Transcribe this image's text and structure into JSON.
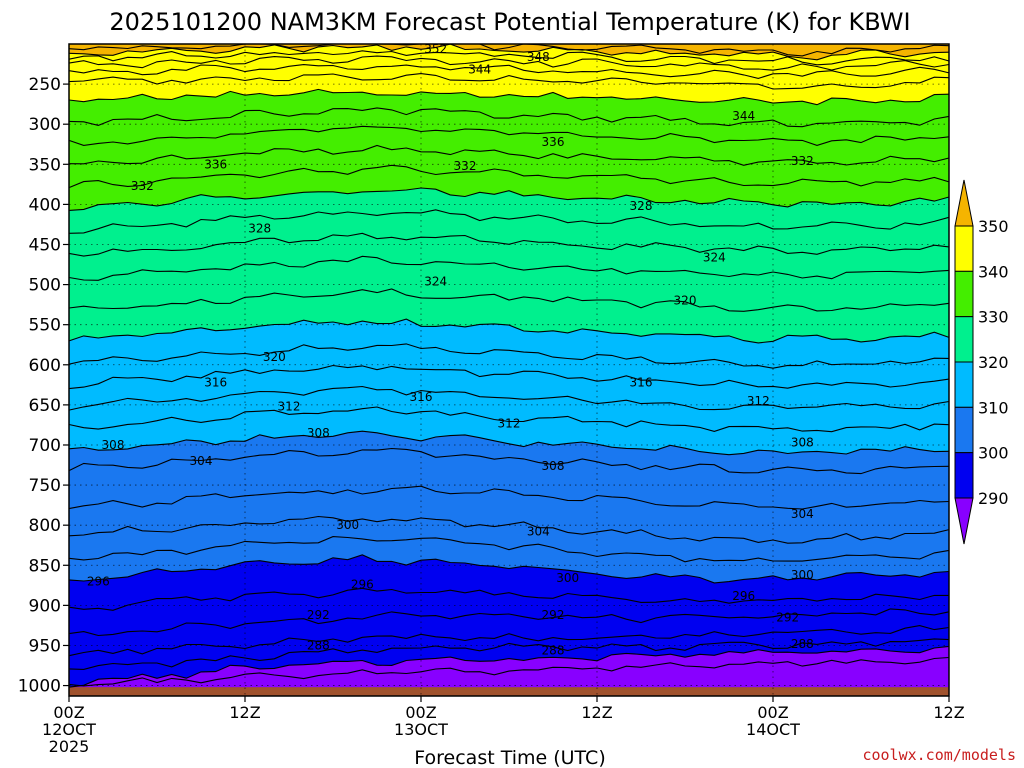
{
  "chart_data": {
    "type": "contour",
    "title": "2025101200 NAM3KM Forecast Potential Temperature (K) for KBWI",
    "xlabel": "Forecast Time (UTC)",
    "ylabel": "",
    "x_ticks": [
      {
        "hour": 0,
        "label": "00Z",
        "date": "12OCT",
        "year": "2025"
      },
      {
        "hour": 12,
        "label": "12Z",
        "date": "",
        "year": ""
      },
      {
        "hour": 24,
        "label": "00Z",
        "date": "13OCT",
        "year": ""
      },
      {
        "hour": 36,
        "label": "12Z",
        "date": "",
        "year": ""
      },
      {
        "hour": 48,
        "label": "00Z",
        "date": "14OCT",
        "year": ""
      },
      {
        "hour": 60,
        "label": "12Z",
        "date": "",
        "year": ""
      }
    ],
    "xlim": [
      0,
      60
    ],
    "y_ticks": [
      250,
      300,
      350,
      400,
      450,
      500,
      550,
      600,
      650,
      700,
      750,
      800,
      850,
      900,
      950,
      1000
    ],
    "ylim": [
      1013,
      200
    ],
    "grid": true,
    "colorbar": {
      "labels": [
        350,
        340,
        330,
        320,
        310,
        300,
        290
      ],
      "colors": [
        "#f5b400",
        "#ffff00",
        "#44ee00",
        "#00f08e",
        "#00bbff",
        "#1a78f0",
        "#0000f0",
        "#8800ff"
      ],
      "extend": "both"
    },
    "contour_levels": [
      {
        "value": 288,
        "p": [
          1002,
          996,
          990,
          986,
          984,
          982,
          981,
          978,
          976,
          974,
          972,
          970,
          968
        ]
      },
      {
        "value": 290,
        "p": [
          997,
          990,
          982,
          975,
          971,
          968,
          967,
          965,
          963,
          961,
          959,
          957,
          956
        ]
      },
      {
        "value": 292,
        "p": [
          980,
          974,
          968,
          960,
          955,
          952,
          952,
          953,
          952,
          950,
          948,
          946,
          944
        ]
      },
      {
        "value": 294,
        "p": [
          962,
          956,
          950,
          945,
          941,
          940,
          940,
          940,
          938,
          936,
          934,
          932,
          930
        ]
      },
      {
        "value": 296,
        "p": [
          938,
          932,
          925,
          920,
          915,
          912,
          912,
          915,
          916,
          914,
          912,
          910,
          908
        ]
      },
      {
        "value": 298,
        "p": [
          905,
          898,
          890,
          885,
          884,
          884,
          886,
          890,
          893,
          895,
          893,
          890,
          888
        ]
      },
      {
        "value": 300,
        "p": [
          868,
          860,
          852,
          846,
          842,
          846,
          852,
          858,
          864,
          868,
          866,
          862,
          858
        ]
      },
      {
        "value": 302,
        "p": [
          842,
          836,
          828,
          822,
          818,
          820,
          826,
          832,
          838,
          844,
          844,
          840,
          836
        ]
      },
      {
        "value": 304,
        "p": [
          812,
          806,
          800,
          795,
          792,
          796,
          800,
          806,
          812,
          818,
          818,
          814,
          810
        ]
      },
      {
        "value": 306,
        "p": [
          778,
          772,
          766,
          760,
          756,
          756,
          760,
          766,
          772,
          776,
          778,
          774,
          770
        ]
      },
      {
        "value": 308,
        "p": [
          730,
          724,
          718,
          712,
          708,
          712,
          718,
          722,
          726,
          730,
          732,
          730,
          726
        ]
      },
      {
        "value": 310,
        "p": [
          705,
          700,
          695,
          690,
          686,
          690,
          696,
          700,
          704,
          708,
          710,
          708,
          705
        ]
      },
      {
        "value": 312,
        "p": [
          678,
          672,
          666,
          660,
          656,
          660,
          666,
          670,
          674,
          678,
          680,
          678,
          674
        ]
      },
      {
        "value": 314,
        "p": [
          652,
          646,
          640,
          634,
          630,
          634,
          640,
          644,
          648,
          652,
          654,
          652,
          648
        ]
      },
      {
        "value": 316,
        "p": [
          625,
          618,
          612,
          606,
          602,
          606,
          612,
          616,
          620,
          624,
          626,
          624,
          620
        ]
      },
      {
        "value": 318,
        "p": [
          598,
          592,
          586,
          580,
          576,
          580,
          586,
          590,
          594,
          598,
          600,
          598,
          594
        ]
      },
      {
        "value": 320,
        "p": [
          568,
          562,
          556,
          550,
          546,
          550,
          554,
          558,
          562,
          566,
          568,
          566,
          562
        ]
      },
      {
        "value": 322,
        "p": [
          532,
          526,
          520,
          514,
          510,
          512,
          516,
          520,
          524,
          528,
          530,
          528,
          524
        ]
      },
      {
        "value": 324,
        "p": [
          492,
          486,
          480,
          474,
          470,
          472,
          476,
          480,
          482,
          486,
          488,
          486,
          482
        ]
      },
      {
        "value": 326,
        "p": [
          462,
          456,
          450,
          444,
          440,
          442,
          446,
          450,
          452,
          456,
          458,
          456,
          452
        ]
      },
      {
        "value": 328,
        "p": [
          432,
          426,
          420,
          414,
          410,
          412,
          416,
          420,
          422,
          426,
          428,
          426,
          422
        ]
      },
      {
        "value": 330,
        "p": [
          405,
          398,
          392,
          386,
          382,
          384,
          388,
          392,
          394,
          398,
          400,
          398,
          394
        ]
      },
      {
        "value": 332,
        "p": [
          378,
          372,
          366,
          360,
          356,
          358,
          362,
          366,
          368,
          372,
          374,
          372,
          368
        ]
      },
      {
        "value": 334,
        "p": [
          352,
          346,
          340,
          334,
          330,
          332,
          336,
          340,
          342,
          346,
          348,
          346,
          342
        ]
      },
      {
        "value": 336,
        "p": [
          325,
          320,
          314,
          308,
          304,
          306,
          310,
          314,
          316,
          320,
          322,
          320,
          316
        ]
      },
      {
        "value": 338,
        "p": [
          298,
          294,
          290,
          286,
          282,
          284,
          288,
          292,
          294,
          298,
          300,
          298,
          294
        ]
      },
      {
        "value": 340,
        "p": [
          268,
          266,
          264,
          262,
          260,
          262,
          264,
          266,
          268,
          270,
          272,
          270,
          266
        ]
      },
      {
        "value": 342,
        "p": [
          248,
          246,
          244,
          242,
          240,
          242,
          244,
          246,
          248,
          250,
          252,
          250,
          246
        ]
      },
      {
        "value": 344,
        "p": [
          235,
          233,
          231,
          229,
          227,
          229,
          231,
          233,
          235,
          237,
          239,
          237,
          233
        ]
      },
      {
        "value": 346,
        "p": [
          226,
          224,
          222,
          220,
          218,
          220,
          222,
          224,
          226,
          228,
          230,
          228,
          224
        ]
      },
      {
        "value": 348,
        "p": [
          218,
          216,
          214,
          212,
          210,
          212,
          214,
          216,
          218,
          220,
          222,
          220,
          216
        ]
      },
      {
        "value": 350,
        "p": [
          211,
          209,
          207,
          205,
          203,
          205,
          207,
          209,
          211,
          213,
          215,
          213,
          209
        ]
      },
      {
        "value": 352,
        "p": [
          206,
          204,
          202,
          200,
          198,
          200,
          202,
          204,
          206,
          208,
          210,
          208,
          204
        ]
      }
    ],
    "contour_labels": [
      {
        "value": "352",
        "hour": 25,
        "p": 206
      },
      {
        "value": "348",
        "hour": 32,
        "p": 216
      },
      {
        "value": "344",
        "hour": 28,
        "p": 232
      },
      {
        "value": "344",
        "hour": 46,
        "p": 290
      },
      {
        "value": "336",
        "hour": 33,
        "p": 322
      },
      {
        "value": "336",
        "hour": 10,
        "p": 350
      },
      {
        "value": "332",
        "hour": 5,
        "p": 377
      },
      {
        "value": "332",
        "hour": 27,
        "p": 352
      },
      {
        "value": "332",
        "hour": 50,
        "p": 346
      },
      {
        "value": "328",
        "hour": 39,
        "p": 402
      },
      {
        "value": "328",
        "hour": 13,
        "p": 430
      },
      {
        "value": "324",
        "hour": 44,
        "p": 466
      },
      {
        "value": "324",
        "hour": 25,
        "p": 496
      },
      {
        "value": "320",
        "hour": 42,
        "p": 520
      },
      {
        "value": "320",
        "hour": 14,
        "p": 590
      },
      {
        "value": "316",
        "hour": 10,
        "p": 622
      },
      {
        "value": "316",
        "hour": 24,
        "p": 640
      },
      {
        "value": "316",
        "hour": 39,
        "p": 622
      },
      {
        "value": "312",
        "hour": 15,
        "p": 652
      },
      {
        "value": "312",
        "hour": 30,
        "p": 673
      },
      {
        "value": "312",
        "hour": 47,
        "p": 645
      },
      {
        "value": "308",
        "hour": 3,
        "p": 700
      },
      {
        "value": "308",
        "hour": 17,
        "p": 685
      },
      {
        "value": "308",
        "hour": 33,
        "p": 726
      },
      {
        "value": "308",
        "hour": 50,
        "p": 697
      },
      {
        "value": "304",
        "hour": 9,
        "p": 720
      },
      {
        "value": "304",
        "hour": 32,
        "p": 808
      },
      {
        "value": "304",
        "hour": 50,
        "p": 786
      },
      {
        "value": "300",
        "hour": 19,
        "p": 800
      },
      {
        "value": "300",
        "hour": 34,
        "p": 866
      },
      {
        "value": "300",
        "hour": 50,
        "p": 862
      },
      {
        "value": "296",
        "hour": 2,
        "p": 870
      },
      {
        "value": "296",
        "hour": 20,
        "p": 874
      },
      {
        "value": "296",
        "hour": 46,
        "p": 888
      },
      {
        "value": "292",
        "hour": 17,
        "p": 912
      },
      {
        "value": "292",
        "hour": 33,
        "p": 912
      },
      {
        "value": "292",
        "hour": 49,
        "p": 915
      },
      {
        "value": "288",
        "hour": 17,
        "p": 950
      },
      {
        "value": "288",
        "hour": 33,
        "p": 956
      },
      {
        "value": "288",
        "hour": 50,
        "p": 948
      }
    ],
    "surface_color": "#a0522d"
  },
  "credit": "coolwx.com/models"
}
